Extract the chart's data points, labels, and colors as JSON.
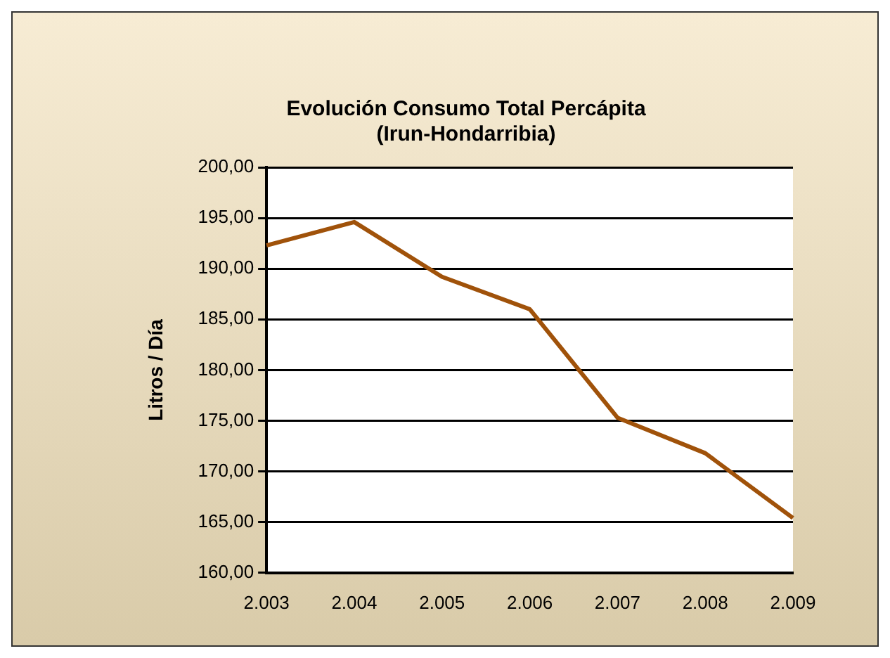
{
  "chart_data": {
    "type": "line",
    "title": "Evolución Consumo Total Percápita\n(Irun-Hondarribia)",
    "ylabel": "Litros / Día",
    "categories": [
      "2.003",
      "2.004",
      "2.005",
      "2.006",
      "2.007",
      "2.008",
      "2.009"
    ],
    "series": [
      {
        "color": "#a0520a",
        "values": [
          192.3,
          194.6,
          189.2,
          186.0,
          175.3,
          171.8,
          165.4
        ]
      }
    ],
    "ylim": [
      160,
      200
    ],
    "yticks": [
      {
        "value": 160,
        "label": "160,00"
      },
      {
        "value": 165,
        "label": "165,00"
      },
      {
        "value": 170,
        "label": "170,00"
      },
      {
        "value": 175,
        "label": "175,00"
      },
      {
        "value": 180,
        "label": "180,00"
      },
      {
        "value": 185,
        "label": "185,00"
      },
      {
        "value": 190,
        "label": "190,00"
      },
      {
        "value": 195,
        "label": "195,00"
      },
      {
        "value": 200,
        "label": "200,00"
      }
    ],
    "grid": "y",
    "legend": false,
    "marker": "none",
    "line_style": "solid"
  }
}
